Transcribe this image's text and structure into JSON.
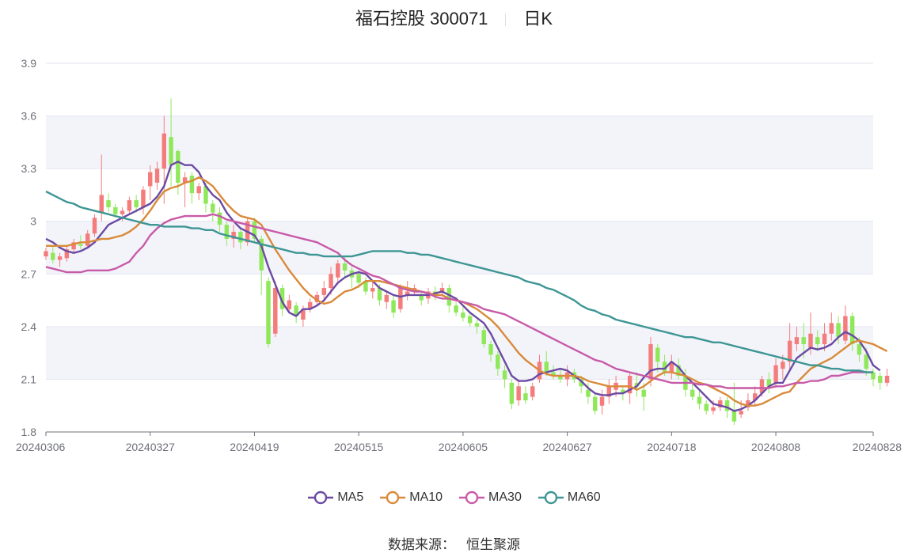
{
  "title": {
    "name": "福石控股 300071",
    "period": "日K"
  },
  "source": {
    "label": "数据来源：",
    "value": "恒生聚源"
  },
  "colors": {
    "up": "#f47c7c",
    "down": "#8fe85a",
    "band": "#f3f4fa",
    "grid": "#e3e6f0",
    "axis": "#6e7079"
  },
  "chart_data": {
    "type": "candlestick",
    "ylim": [
      1.8,
      3.9
    ],
    "yticks": [
      "1.8",
      "2.1",
      "2.4",
      "2.7",
      "3",
      "3.3",
      "3.6",
      "3.9"
    ],
    "xticks": [
      "20240306",
      "20240327",
      "20240419",
      "20240515",
      "20240605",
      "20240627",
      "20240718",
      "20240808",
      "20240828"
    ],
    "xtick_indices": [
      0,
      15,
      30,
      45,
      60,
      75,
      90,
      105,
      119
    ],
    "n": 120,
    "candles": [
      [
        2.8,
        2.83,
        2.78,
        2.85
      ],
      [
        2.82,
        2.78,
        2.76,
        2.86
      ],
      [
        2.78,
        2.8,
        2.74,
        2.82
      ],
      [
        2.79,
        2.84,
        2.77,
        2.86
      ],
      [
        2.84,
        2.88,
        2.82,
        2.9
      ],
      [
        2.87,
        2.86,
        2.84,
        2.92
      ],
      [
        2.86,
        2.93,
        2.85,
        2.95
      ],
      [
        2.93,
        3.02,
        2.91,
        3.04
      ],
      [
        3.05,
        3.15,
        3.0,
        3.38
      ],
      [
        3.12,
        3.08,
        3.05,
        3.16
      ],
      [
        3.08,
        3.04,
        3.02,
        3.1
      ],
      [
        3.04,
        3.06,
        3.0,
        3.08
      ],
      [
        3.06,
        3.12,
        3.04,
        3.14
      ],
      [
        3.12,
        3.08,
        3.05,
        3.15
      ],
      [
        3.08,
        3.18,
        3.04,
        3.2
      ],
      [
        3.2,
        3.28,
        3.12,
        3.32
      ],
      [
        3.22,
        3.3,
        3.18,
        3.34
      ],
      [
        3.3,
        3.5,
        3.1,
        3.6
      ],
      [
        3.48,
        3.32,
        3.2,
        3.7
      ],
      [
        3.4,
        3.22,
        3.15,
        3.41
      ],
      [
        3.22,
        3.25,
        3.08,
        3.28
      ],
      [
        3.26,
        3.16,
        3.1,
        3.28
      ],
      [
        3.16,
        3.2,
        3.12,
        3.22
      ],
      [
        3.2,
        3.1,
        3.05,
        3.22
      ],
      [
        3.1,
        3.05,
        3.0,
        3.12
      ],
      [
        3.05,
        2.98,
        2.94,
        3.08
      ],
      [
        2.98,
        2.9,
        2.86,
        3.0
      ],
      [
        2.9,
        2.94,
        2.85,
        2.98
      ],
      [
        2.94,
        2.88,
        2.84,
        2.96
      ],
      [
        2.88,
        3.0,
        2.86,
        3.02
      ],
      [
        3.0,
        2.9,
        2.88,
        3.02
      ],
      [
        2.9,
        2.72,
        2.58,
        2.92
      ],
      [
        2.66,
        2.3,
        2.28,
        2.68
      ],
      [
        2.36,
        2.62,
        2.34,
        2.66
      ],
      [
        2.62,
        2.5,
        2.46,
        2.64
      ],
      [
        2.5,
        2.55,
        2.48,
        2.58
      ],
      [
        2.52,
        2.46,
        2.42,
        2.54
      ],
      [
        2.44,
        2.5,
        2.4,
        2.52
      ],
      [
        2.5,
        2.54,
        2.48,
        2.56
      ],
      [
        2.54,
        2.58,
        2.52,
        2.6
      ],
      [
        2.58,
        2.62,
        2.54,
        2.66
      ],
      [
        2.62,
        2.7,
        2.58,
        2.74
      ],
      [
        2.68,
        2.76,
        2.64,
        2.78
      ],
      [
        2.76,
        2.72,
        2.68,
        2.8
      ],
      [
        2.72,
        2.68,
        2.62,
        2.74
      ],
      [
        2.7,
        2.65,
        2.62,
        2.72
      ],
      [
        2.66,
        2.6,
        2.58,
        2.68
      ],
      [
        2.6,
        2.62,
        2.56,
        2.66
      ],
      [
        2.62,
        2.55,
        2.52,
        2.64
      ],
      [
        2.54,
        2.58,
        2.5,
        2.6
      ],
      [
        2.55,
        2.48,
        2.45,
        2.58
      ],
      [
        2.5,
        2.62,
        2.48,
        2.64
      ],
      [
        2.58,
        2.6,
        2.55,
        2.66
      ],
      [
        2.6,
        2.62,
        2.58,
        2.64
      ],
      [
        2.58,
        2.55,
        2.52,
        2.6
      ],
      [
        2.56,
        2.6,
        2.53,
        2.62
      ],
      [
        2.6,
        2.58,
        2.55,
        2.63
      ],
      [
        2.6,
        2.62,
        2.57,
        2.65
      ],
      [
        2.62,
        2.52,
        2.48,
        2.64
      ],
      [
        2.52,
        2.48,
        2.46,
        2.54
      ],
      [
        2.48,
        2.45,
        2.43,
        2.52
      ],
      [
        2.46,
        2.42,
        2.4,
        2.48
      ],
      [
        2.42,
        2.4,
        2.36,
        2.44
      ],
      [
        2.38,
        2.3,
        2.28,
        2.4
      ],
      [
        2.3,
        2.24,
        2.2,
        2.32
      ],
      [
        2.24,
        2.16,
        2.12,
        2.26
      ],
      [
        2.15,
        2.1,
        2.05,
        2.18
      ],
      [
        2.08,
        1.96,
        1.93,
        2.1
      ],
      [
        1.98,
        2.06,
        1.95,
        2.1
      ],
      [
        2.02,
        1.98,
        1.96,
        2.06
      ],
      [
        2.0,
        2.06,
        1.98,
        2.08
      ],
      [
        2.1,
        2.2,
        2.08,
        2.24
      ],
      [
        2.2,
        2.14,
        2.12,
        2.26
      ],
      [
        2.14,
        2.12,
        2.1,
        2.18
      ],
      [
        2.12,
        2.1,
        2.08,
        2.16
      ],
      [
        2.1,
        2.14,
        2.06,
        2.18
      ],
      [
        2.14,
        2.1,
        2.08,
        2.16
      ],
      [
        2.1,
        2.06,
        2.02,
        2.12
      ],
      [
        2.04,
        2.0,
        1.96,
        2.08
      ],
      [
        2.0,
        1.92,
        1.9,
        2.02
      ],
      [
        1.95,
        2.0,
        1.9,
        2.04
      ],
      [
        2.0,
        2.06,
        1.96,
        2.1
      ],
      [
        2.04,
        2.08,
        2.0,
        2.12
      ],
      [
        2.04,
        2.02,
        1.98,
        2.06
      ],
      [
        2.02,
        2.12,
        1.96,
        2.14
      ],
      [
        2.08,
        2.06,
        2.0,
        2.14
      ],
      [
        2.04,
        2.0,
        1.92,
        2.08
      ],
      [
        2.1,
        2.3,
        2.06,
        2.34
      ],
      [
        2.28,
        2.2,
        2.14,
        2.3
      ],
      [
        2.2,
        2.14,
        2.12,
        2.24
      ],
      [
        2.14,
        2.2,
        2.1,
        2.24
      ],
      [
        2.18,
        2.12,
        2.1,
        2.22
      ],
      [
        2.12,
        2.04,
        2.0,
        2.16
      ],
      [
        2.04,
        2.0,
        1.98,
        2.08
      ],
      [
        2.0,
        1.96,
        1.93,
        2.04
      ],
      [
        1.96,
        1.92,
        1.9,
        1.98
      ],
      [
        1.92,
        1.94,
        1.9,
        1.98
      ],
      [
        1.94,
        1.98,
        1.92,
        2.0
      ],
      [
        1.98,
        1.92,
        1.88,
        2.0
      ],
      [
        1.92,
        1.86,
        1.84,
        2.08
      ],
      [
        1.9,
        1.92,
        1.88,
        1.98
      ],
      [
        1.94,
        1.98,
        1.92,
        2.02
      ],
      [
        1.98,
        2.02,
        1.95,
        2.06
      ],
      [
        2.02,
        2.1,
        2.0,
        2.12
      ],
      [
        2.1,
        2.06,
        2.02,
        2.14
      ],
      [
        2.08,
        2.18,
        2.05,
        2.22
      ],
      [
        2.16,
        2.2,
        2.1,
        2.24
      ],
      [
        2.2,
        2.32,
        2.14,
        2.42
      ],
      [
        2.3,
        2.34,
        2.26,
        2.4
      ],
      [
        2.34,
        2.3,
        2.22,
        2.42
      ],
      [
        2.28,
        2.36,
        2.24,
        2.48
      ],
      [
        2.34,
        2.3,
        2.26,
        2.38
      ],
      [
        2.3,
        2.36,
        2.26,
        2.42
      ],
      [
        2.36,
        2.42,
        2.32,
        2.48
      ],
      [
        2.42,
        2.34,
        2.3,
        2.46
      ],
      [
        2.32,
        2.46,
        2.3,
        2.52
      ],
      [
        2.46,
        2.3,
        2.26,
        2.48
      ],
      [
        2.3,
        2.24,
        2.2,
        2.34
      ],
      [
        2.24,
        2.16,
        2.12,
        2.28
      ],
      [
        2.14,
        2.1,
        2.06,
        2.16
      ],
      [
        2.12,
        2.08,
        2.04,
        2.14
      ],
      [
        2.08,
        2.12,
        2.06,
        2.16
      ]
    ],
    "series": [
      {
        "name": "MA5",
        "color": "#6b4aa3",
        "values": [
          2.9,
          2.88,
          2.85,
          2.83,
          2.82,
          2.83,
          2.85,
          2.88,
          2.93,
          2.98,
          3.0,
          3.02,
          3.04,
          3.06,
          3.08,
          3.1,
          3.14,
          3.2,
          3.32,
          3.34,
          3.32,
          3.32,
          3.28,
          3.2,
          3.15,
          3.12,
          3.05,
          3.0,
          2.96,
          2.94,
          2.92,
          2.86,
          2.74,
          2.64,
          2.54,
          2.48,
          2.46,
          2.5,
          2.5,
          2.52,
          2.55,
          2.6,
          2.65,
          2.68,
          2.7,
          2.71,
          2.7,
          2.66,
          2.62,
          2.6,
          2.58,
          2.57,
          2.58,
          2.58,
          2.58,
          2.58,
          2.59,
          2.6,
          2.58,
          2.56,
          2.52,
          2.48,
          2.45,
          2.42,
          2.36,
          2.28,
          2.2,
          2.12,
          2.09,
          2.09,
          2.1,
          2.13,
          2.14,
          2.15,
          2.16,
          2.15,
          2.12,
          2.09,
          2.05,
          2.02,
          2.01,
          2.01,
          2.02,
          2.02,
          2.04,
          2.06,
          2.11,
          2.15,
          2.16,
          2.16,
          2.2,
          2.17,
          2.12,
          2.08,
          2.04,
          2.0,
          1.96,
          1.95,
          1.94,
          1.92,
          1.93,
          1.95,
          1.98,
          2.02,
          2.06,
          2.08,
          2.08,
          2.15,
          2.22,
          2.25,
          2.28,
          2.27,
          2.28,
          2.3,
          2.34,
          2.37,
          2.35,
          2.32,
          2.26,
          2.18,
          2.15
        ]
      },
      {
        "name": "MA10",
        "color": "#d98a3a",
        "values": [
          2.86,
          2.86,
          2.86,
          2.86,
          2.87,
          2.88,
          2.88,
          2.89,
          2.9,
          2.9,
          2.91,
          2.92,
          2.94,
          2.97,
          3.01,
          3.06,
          3.12,
          3.17,
          3.19,
          3.2,
          3.22,
          3.23,
          3.25,
          3.23,
          3.2,
          3.15,
          3.1,
          3.06,
          3.03,
          3.02,
          3.01,
          2.98,
          2.91,
          2.84,
          2.78,
          2.72,
          2.67,
          2.62,
          2.58,
          2.55,
          2.53,
          2.54,
          2.57,
          2.6,
          2.61,
          2.63,
          2.66,
          2.66,
          2.66,
          2.65,
          2.64,
          2.63,
          2.62,
          2.61,
          2.6,
          2.59,
          2.58,
          2.58,
          2.56,
          2.55,
          2.54,
          2.52,
          2.5,
          2.47,
          2.44,
          2.4,
          2.35,
          2.3,
          2.25,
          2.21,
          2.18,
          2.15,
          2.13,
          2.12,
          2.12,
          2.12,
          2.12,
          2.11,
          2.09,
          2.08,
          2.07,
          2.06,
          2.06,
          2.06,
          2.06,
          2.04,
          2.06,
          2.09,
          2.12,
          2.14,
          2.14,
          2.13,
          2.12,
          2.1,
          2.08,
          2.07,
          2.05,
          2.03,
          2.01,
          1.98,
          1.96,
          1.95,
          1.95,
          1.96,
          1.98,
          2.0,
          2.02,
          2.03,
          2.08,
          2.12,
          2.16,
          2.18,
          2.2,
          2.22,
          2.25,
          2.28,
          2.31,
          2.32,
          2.31,
          2.3,
          2.28,
          2.26
        ]
      },
      {
        "name": "MA30",
        "color": "#c85aa8",
        "values": [
          2.74,
          2.73,
          2.72,
          2.71,
          2.71,
          2.71,
          2.72,
          2.72,
          2.72,
          2.72,
          2.73,
          2.75,
          2.77,
          2.82,
          2.86,
          2.92,
          2.96,
          2.99,
          3.01,
          3.02,
          3.03,
          3.03,
          3.03,
          3.03,
          3.04,
          3.03,
          3.01,
          3.0,
          2.99,
          2.98,
          2.97,
          2.96,
          2.95,
          2.94,
          2.93,
          2.92,
          2.91,
          2.9,
          2.89,
          2.88,
          2.86,
          2.84,
          2.82,
          2.78,
          2.75,
          2.73,
          2.71,
          2.69,
          2.68,
          2.66,
          2.64,
          2.62,
          2.61,
          2.6,
          2.6,
          2.59,
          2.57,
          2.56,
          2.56,
          2.55,
          2.54,
          2.53,
          2.52,
          2.5,
          2.49,
          2.48,
          2.47,
          2.45,
          2.43,
          2.41,
          2.39,
          2.37,
          2.35,
          2.33,
          2.31,
          2.29,
          2.27,
          2.25,
          2.23,
          2.21,
          2.2,
          2.18,
          2.16,
          2.15,
          2.14,
          2.13,
          2.12,
          2.11,
          2.1,
          2.09,
          2.08,
          2.08,
          2.08,
          2.08,
          2.07,
          2.07,
          2.06,
          2.06,
          2.05,
          2.05,
          2.05,
          2.05,
          2.05,
          2.05,
          2.05,
          2.06,
          2.06,
          2.07,
          2.08,
          2.08,
          2.09,
          2.09,
          2.1,
          2.12,
          2.12,
          2.13,
          2.14,
          2.14,
          2.14,
          2.14
        ]
      },
      {
        "name": "MA60",
        "color": "#3d9694",
        "values": [
          3.17,
          3.15,
          3.13,
          3.11,
          3.1,
          3.08,
          3.07,
          3.06,
          3.05,
          3.04,
          3.03,
          3.02,
          3.01,
          3.0,
          2.99,
          2.98,
          2.98,
          2.97,
          2.97,
          2.97,
          2.97,
          2.96,
          2.96,
          2.95,
          2.95,
          2.93,
          2.92,
          2.91,
          2.9,
          2.89,
          2.88,
          2.87,
          2.86,
          2.85,
          2.84,
          2.83,
          2.82,
          2.82,
          2.81,
          2.81,
          2.8,
          2.8,
          2.8,
          2.8,
          2.8,
          2.81,
          2.82,
          2.83,
          2.83,
          2.83,
          2.83,
          2.83,
          2.82,
          2.82,
          2.81,
          2.81,
          2.8,
          2.79,
          2.78,
          2.77,
          2.76,
          2.75,
          2.74,
          2.73,
          2.72,
          2.71,
          2.7,
          2.69,
          2.68,
          2.66,
          2.65,
          2.64,
          2.62,
          2.61,
          2.59,
          2.57,
          2.55,
          2.52,
          2.5,
          2.49,
          2.47,
          2.46,
          2.44,
          2.43,
          2.42,
          2.41,
          2.4,
          2.39,
          2.38,
          2.37,
          2.36,
          2.35,
          2.34,
          2.34,
          2.33,
          2.32,
          2.31,
          2.31,
          2.3,
          2.29,
          2.28,
          2.27,
          2.26,
          2.25,
          2.24,
          2.23,
          2.22,
          2.21,
          2.2,
          2.19,
          2.18,
          2.18,
          2.17,
          2.16,
          2.16,
          2.15,
          2.15,
          2.15,
          2.14,
          2.14
        ]
      }
    ]
  }
}
